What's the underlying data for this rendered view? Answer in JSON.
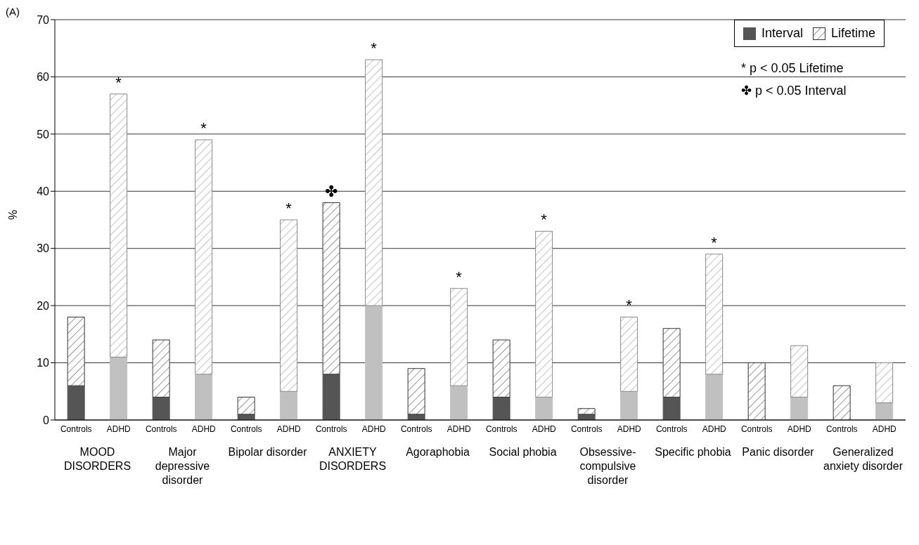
{
  "chart_data": {
    "type": "bar",
    "stacked": true,
    "ylabel": "%",
    "ylim": [
      0,
      70
    ],
    "yticks": [
      0,
      10,
      20,
      30,
      40,
      50,
      60,
      70
    ],
    "grid": "y",
    "legend": "top right",
    "categories": [
      "Controls",
      "ADHD",
      "Controls",
      "ADHD",
      "Controls",
      "ADHD",
      "Controls",
      "ADHD",
      "Controls",
      "ADHD",
      "Controls",
      "ADHD",
      "Controls",
      "ADHD",
      "Controls",
      "ADHD",
      "Controls",
      "ADHD",
      "Controls",
      "ADHD"
    ],
    "series": [
      {
        "name": "Interval",
        "color": "#555555",
        "colors": [
          "#555555",
          "#c0c0c0",
          "#555555",
          "#c0c0c0",
          "#555555",
          "#c0c0c0",
          "#555555",
          "#c0c0c0",
          "#555555",
          "#c0c0c0",
          "#555555",
          "#c0c0c0",
          "#555555",
          "#c0c0c0",
          "#555555",
          "#c0c0c0",
          "#555555",
          "#c0c0c0",
          "#555555",
          "#c0c0c0"
        ],
        "values": [
          6,
          11,
          4,
          8,
          1,
          5,
          8,
          20,
          1,
          6,
          4,
          4,
          1,
          5,
          4,
          8,
          0,
          4,
          0,
          3
        ]
      },
      {
        "name": "Lifetime",
        "color": "#333333",
        "colors": [
          "#333333",
          "#888888",
          "#333333",
          "#888888",
          "#333333",
          "#888888",
          "#333333",
          "#888888",
          "#333333",
          "#888888",
          "#333333",
          "#888888",
          "#333333",
          "#888888",
          "#333333",
          "#888888",
          "#333333",
          "#888888",
          "#333333",
          "#888888"
        ],
        "values": [
          12,
          46,
          10,
          41,
          3,
          30,
          30,
          43,
          8,
          17,
          10,
          29,
          1,
          13,
          12,
          21,
          10,
          9,
          6,
          7
        ],
        "value_labels": [
          null,
          "*",
          null,
          "*",
          null,
          "*",
          "✤",
          "*",
          null,
          "*",
          null,
          "*",
          null,
          "*",
          null,
          "*",
          null,
          null,
          null,
          null
        ]
      }
    ],
    "annotations": [
      "(A)",
      "* p < 0.05 Lifetime",
      "✤ p < 0.05 Interval",
      "MOOD DISORDERS",
      "Major depressive disorder",
      "Bipolar disorder",
      "ANXIETY DISORDERS",
      "Agoraphobia",
      "Social phobia",
      "Obsessive-compulsive disorder",
      "Specific phobia",
      "Panic disorder",
      "Generalized anxiety disorder"
    ]
  }
}
